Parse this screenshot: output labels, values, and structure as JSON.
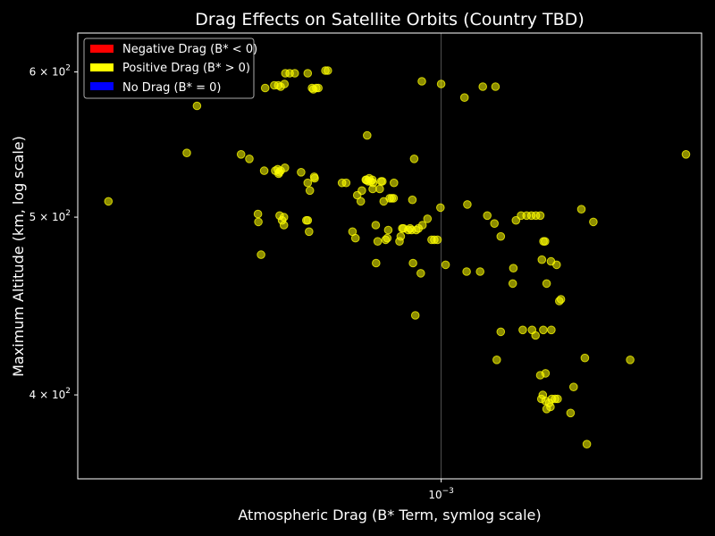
{
  "chart_data": {
    "type": "scatter",
    "title": "Drag Effects on Satellite Orbits (Country TBD)",
    "xlabel": "Atmospheric Drag (B* Term, symlog scale)",
    "ylabel": "Maximum Altitude (km, log scale)",
    "xscale": "symlog",
    "yscale": "log",
    "xlim": [
      0.00025,
      0.0027
    ],
    "ylim": [
      360,
      630
    ],
    "x_ticks": [
      {
        "value": 0.001,
        "base": "10",
        "exp": "−3"
      }
    ],
    "y_ticks": [
      {
        "value": 400,
        "base": "4 × 10",
        "exp": "2"
      },
      {
        "value": 500,
        "base": "5 × 10",
        "exp": "2"
      },
      {
        "value": 600,
        "base": "6 × 10",
        "exp": "2"
      }
    ],
    "grid": "x-only",
    "legend": {
      "placement": "top-left",
      "entries": [
        {
          "label": "Negative Drag (B* < 0)",
          "color": "#ff0000"
        },
        {
          "label": "Positive Drag (B* > 0)",
          "color": "#ffff00"
        },
        {
          "label": "No Drag (B* = 0)",
          "color": "#0000ff"
        }
      ]
    },
    "point_color": "#ffff00",
    "point_alpha": 0.55,
    "series": [
      {
        "sign": "positive",
        "points": [
          [
            0.000281,
            510
          ],
          [
            0.000379,
            542
          ],
          [
            0.000394,
            575
          ],
          [
            0.000466,
            541
          ],
          [
            0.000481,
            538
          ],
          [
            0.000497,
            502
          ],
          [
            0.000498,
            497
          ],
          [
            0.000503,
            477
          ],
          [
            0.000509,
            530
          ],
          [
            0.000511,
            588
          ],
          [
            0.000531,
            530
          ],
          [
            0.000536,
            531
          ],
          [
            0.000538,
            528
          ],
          [
            0.000539,
            529
          ],
          [
            0.000542,
            530
          ],
          [
            0.000529,
            590
          ],
          [
            0.000537,
            590
          ],
          [
            0.000542,
            589
          ],
          [
            0.00054,
            501
          ],
          [
            0.000545,
            498
          ],
          [
            0.000549,
            500
          ],
          [
            0.000549,
            495
          ],
          [
            0.000551,
            532
          ],
          [
            0.00055,
            591
          ],
          [
            0.000552,
            599
          ],
          [
            0.000561,
            599
          ],
          [
            0.000572,
            599
          ],
          [
            0.000586,
            529
          ],
          [
            0.000598,
            498
          ],
          [
            0.000601,
            498
          ],
          [
            0.000601,
            522
          ],
          [
            0.000604,
            491
          ],
          [
            0.000606,
            517
          ],
          [
            0.000601,
            599
          ],
          [
            0.000611,
            588
          ],
          [
            0.000614,
            587
          ],
          [
            0.000621,
            588
          ],
          [
            0.000626,
            588
          ],
          [
            0.000616,
            526
          ],
          [
            0.000617,
            525
          ],
          [
            0.000643,
            601
          ],
          [
            0.000649,
            601
          ],
          [
            0.000685,
            522
          ],
          [
            0.000696,
            522
          ],
          [
            0.000713,
            491
          ],
          [
            0.000721,
            487
          ],
          [
            0.000726,
            514
          ],
          [
            0.000736,
            510
          ],
          [
            0.000739,
            517
          ],
          [
            0.00075,
            524
          ],
          [
            0.000752,
            524
          ],
          [
            0.000757,
            523
          ],
          [
            0.00076,
            525
          ],
          [
            0.000764,
            523
          ],
          [
            0.000769,
            524
          ],
          [
            0.000771,
            522
          ],
          [
            0.00077,
            518
          ],
          [
            0.000754,
            554
          ],
          [
            0.000779,
            495
          ],
          [
            0.00078,
            472
          ],
          [
            0.000785,
            485
          ],
          [
            0.000791,
            518
          ],
          [
            0.000795,
            523
          ],
          [
            0.000799,
            523
          ],
          [
            0.000803,
            510
          ],
          [
            0.000809,
            486
          ],
          [
            0.000814,
            487
          ],
          [
            0.000817,
            492
          ],
          [
            0.000822,
            512
          ],
          [
            0.000828,
            512
          ],
          [
            0.000834,
            512
          ],
          [
            0.000835,
            522
          ],
          [
            0.000853,
            485
          ],
          [
            0.000857,
            488
          ],
          [
            0.000862,
            493
          ],
          [
            0.000866,
            493
          ],
          [
            0.000882,
            492
          ],
          [
            0.000888,
            493
          ],
          [
            0.000893,
            492
          ],
          [
            0.000896,
            511
          ],
          [
            0.000898,
            472
          ],
          [
            0.000902,
            538
          ],
          [
            0.000909,
            492
          ],
          [
            0.000917,
            493
          ],
          [
            0.000925,
            466
          ],
          [
            0.000931,
            495
          ],
          [
            0.000906,
            442
          ],
          [
            0.000929,
            593
          ],
          [
            0.000949,
            499
          ],
          [
            0.000964,
            486
          ],
          [
            0.000974,
            486
          ],
          [
            0.000986,
            486
          ],
          [
            0.000997,
            506
          ],
          [
            0.001017,
            471
          ],
          [
            0.001,
            591
          ],
          [
            0.001093,
            581
          ],
          [
            0.001102,
            467
          ],
          [
            0.00116,
            467
          ],
          [
            0.001105,
            508
          ],
          [
            0.001192,
            501
          ],
          [
            0.001225,
            496
          ],
          [
            0.001255,
            488
          ],
          [
            0.00133,
            498
          ],
          [
            0.001356,
            501
          ],
          [
            0.001385,
            501
          ],
          [
            0.001411,
            501
          ],
          [
            0.001435,
            501
          ],
          [
            0.001459,
            501
          ],
          [
            0.001477,
            485
          ],
          [
            0.001486,
            485
          ],
          [
            0.001172,
            589
          ],
          [
            0.00123,
            589
          ],
          [
            0.001317,
            469
          ],
          [
            0.001314,
            460
          ],
          [
            0.001468,
            474
          ],
          [
            0.001495,
            460
          ],
          [
            0.00152,
            473
          ],
          [
            0.001553,
            471
          ],
          [
            0.001569,
            450
          ],
          [
            0.001579,
            451
          ],
          [
            0.001255,
            433
          ],
          [
            0.001365,
            434
          ],
          [
            0.001414,
            434
          ],
          [
            0.001433,
            431
          ],
          [
            0.001476,
            434
          ],
          [
            0.001522,
            434
          ],
          [
            0.001236,
            418
          ],
          [
            0.001459,
            410
          ],
          [
            0.001489,
            411
          ],
          [
            0.001473,
            400
          ],
          [
            0.001465,
            398
          ],
          [
            0.001489,
            397
          ],
          [
            0.00151,
            396
          ],
          [
            0.001525,
            398
          ],
          [
            0.001544,
            398
          ],
          [
            0.001559,
            398
          ],
          [
            0.001495,
            393
          ],
          [
            0.001517,
            394
          ],
          [
            0.001657,
            404
          ],
          [
            0.001638,
            391
          ],
          [
            0.001707,
            505
          ],
          [
            0.001787,
            497
          ],
          [
            0.00173,
            419
          ],
          [
            0.002056,
            418
          ],
          [
            0.001743,
            376
          ],
          [
            0.002544,
            541
          ]
        ]
      }
    ]
  }
}
